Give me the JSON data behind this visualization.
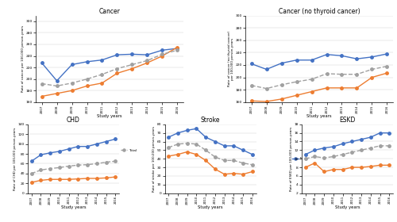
{
  "years": [
    2007,
    2008,
    2009,
    2010,
    2011,
    2012,
    2013,
    2014,
    2015,
    2016
  ],
  "cancer": {
    "title": "Cancer",
    "ylabel": "Rate of cancer per 100,000 person-years",
    "male": [
      228,
      197,
      225,
      230,
      233,
      242,
      243,
      242,
      250,
      253
    ],
    "female": [
      170,
      175,
      180,
      188,
      193,
      210,
      218,
      228,
      240,
      255
    ],
    "total": [
      192,
      188,
      193,
      200,
      208,
      218,
      225,
      232,
      243,
      250
    ],
    "ylim": [
      160,
      310
    ]
  },
  "cancer_no_thyroid": {
    "title": "Cancer (no thyroid cancer)",
    "ylabel": "Rate of cancer (no thyroid cancer)\nper 100,000 person-years",
    "male": [
      222,
      213,
      223,
      228,
      228,
      237,
      235,
      230,
      233,
      238
    ],
    "female": [
      162,
      161,
      165,
      171,
      177,
      183,
      183,
      183,
      200,
      207
    ],
    "total": [
      187,
      182,
      188,
      193,
      197,
      206,
      205,
      205,
      213,
      218
    ],
    "ylim": [
      160,
      300
    ]
  },
  "chd": {
    "title": "CHD",
    "ylabel": "Rate of CHD per 100,000 person-years",
    "male": [
      65,
      78,
      82,
      85,
      90,
      95,
      95,
      100,
      105,
      110
    ],
    "female": [
      22,
      26,
      28,
      28,
      28,
      29,
      30,
      30,
      31,
      33
    ],
    "total": [
      40,
      47,
      50,
      52,
      55,
      57,
      58,
      60,
      63,
      65
    ],
    "ylim": [
      0,
      140
    ]
  },
  "stroke": {
    "title": "Stroke",
    "ylabel": "Rate of stroke per 100,000 person-years",
    "male": [
      65,
      70,
      73,
      75,
      65,
      60,
      55,
      55,
      50,
      45
    ],
    "female": [
      43,
      45,
      48,
      45,
      38,
      28,
      22,
      23,
      22,
      25
    ],
    "total": [
      53,
      57,
      58,
      57,
      50,
      42,
      38,
      38,
      35,
      33
    ],
    "ylim": [
      0,
      80
    ]
  },
  "eskd": {
    "title": "ESKD",
    "ylabel": "Rate of ESKD per 100,000 person-years",
    "male": [
      11,
      12,
      12.5,
      12.8,
      13.5,
      14,
      14.5,
      15,
      16,
      16
    ],
    "female": [
      8,
      9,
      7,
      7.5,
      7.5,
      8,
      8,
      8.2,
      8.5,
      8.5
    ],
    "total": [
      10,
      10.5,
      10.2,
      10.5,
      11,
      11.5,
      12,
      12.5,
      13,
      13
    ],
    "ylim": [
      2,
      18
    ]
  },
  "colors": {
    "male": "#4472C4",
    "female": "#ED7D31",
    "total": "#A0A0A0"
  },
  "xlabel": "Study years",
  "linewidth": 1.0,
  "markersize": 2.5
}
